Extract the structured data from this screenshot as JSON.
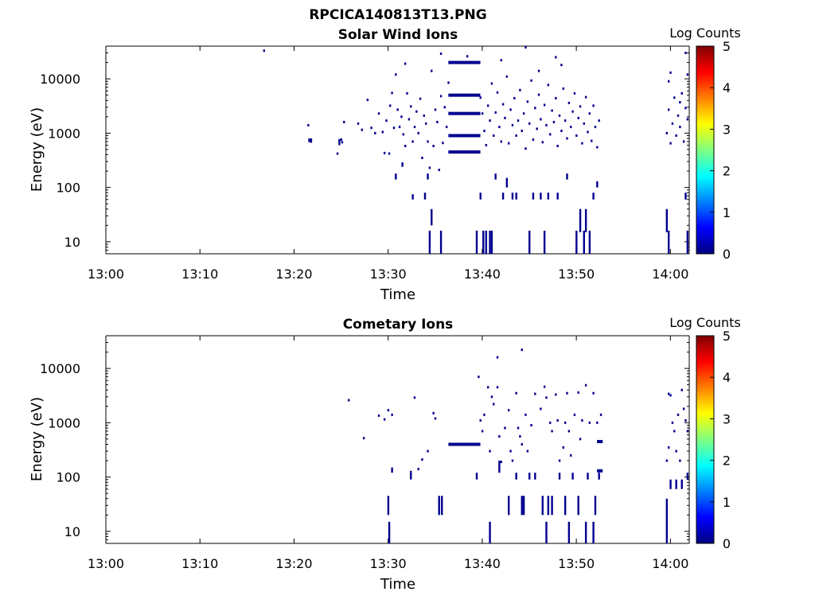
{
  "figure": {
    "title": "RPCICA140813T13.PNG"
  },
  "chart_data": [
    {
      "type": "heatmap",
      "title": "Solar Wind Ions",
      "xlabel": "Time",
      "ylabel": "Energy (eV)",
      "x_ticks": [
        "13:00",
        "13:10",
        "13:20",
        "13:30",
        "13:40",
        "13:50",
        "14:00"
      ],
      "x_range_minutes": [
        0,
        62
      ],
      "y_ticks": [
        "10",
        "100",
        "1000",
        "10000"
      ],
      "y_scale": "log",
      "y_range": [
        6,
        40000
      ],
      "colorbar": {
        "label": "Log Counts",
        "ticks": [
          "0",
          "1",
          "2",
          "3",
          "4",
          "5"
        ],
        "range": [
          0,
          5
        ],
        "colormap": "jet"
      },
      "mark_color": "#00008f",
      "points": [
        [
          21.5,
          1400
        ],
        [
          21.8,
          700
        ],
        [
          21.8,
          760
        ],
        [
          24.6,
          420
        ],
        [
          25.0,
          760
        ],
        [
          25.1,
          680
        ],
        [
          25.3,
          1600
        ],
        [
          26.8,
          1500
        ],
        [
          27.2,
          1150
        ],
        [
          27.8,
          4100
        ],
        [
          28.2,
          1250
        ],
        [
          28.6,
          1000
        ],
        [
          29.0,
          2300
        ],
        [
          29.4,
          1050
        ],
        [
          29.6,
          430
        ],
        [
          29.8,
          1700
        ],
        [
          30.1,
          420
        ],
        [
          30.2,
          3200
        ],
        [
          30.4,
          5500
        ],
        [
          30.6,
          1250
        ],
        [
          30.8,
          12000
        ],
        [
          31.0,
          2700
        ],
        [
          31.2,
          1300
        ],
        [
          31.4,
          2000
        ],
        [
          31.6,
          950
        ],
        [
          31.8,
          580
        ],
        [
          32.0,
          5400
        ],
        [
          32.2,
          1800
        ],
        [
          32.4,
          3100
        ],
        [
          32.6,
          700
        ],
        [
          32.8,
          1300
        ],
        [
          33.0,
          2500
        ],
        [
          33.2,
          1000
        ],
        [
          33.4,
          4300
        ],
        [
          33.6,
          350
        ],
        [
          33.8,
          2100
        ],
        [
          34.0,
          1500
        ],
        [
          34.2,
          700
        ],
        [
          34.4,
          230
        ],
        [
          34.6,
          14000
        ],
        [
          34.8,
          580
        ],
        [
          35.0,
          2700
        ],
        [
          35.2,
          1600
        ],
        [
          35.4,
          210
        ],
        [
          35.6,
          4800
        ],
        [
          35.8,
          660
        ],
        [
          36.0,
          3000
        ],
        [
          36.2,
          1300
        ],
        [
          36.4,
          8500
        ],
        [
          16.8,
          33000
        ],
        [
          31.8,
          19000
        ],
        [
          35.6,
          29000
        ],
        [
          38.4,
          26000
        ],
        [
          39.8,
          4500
        ],
        [
          40.0,
          2300
        ],
        [
          40.2,
          1100
        ],
        [
          40.4,
          600
        ],
        [
          40.6,
          3200
        ],
        [
          40.8,
          1700
        ],
        [
          41.0,
          8200
        ],
        [
          41.2,
          900
        ],
        [
          41.4,
          2400
        ],
        [
          41.6,
          5600
        ],
        [
          41.8,
          1300
        ],
        [
          42.0,
          700
        ],
        [
          42.2,
          3400
        ],
        [
          42.4,
          1900
        ],
        [
          42.6,
          11000
        ],
        [
          42.8,
          650
        ],
        [
          43.0,
          2700
        ],
        [
          43.2,
          1400
        ],
        [
          43.4,
          4400
        ],
        [
          43.6,
          900
        ],
        [
          43.8,
          1700
        ],
        [
          44.0,
          6200
        ],
        [
          44.2,
          1100
        ],
        [
          44.4,
          2300
        ],
        [
          44.6,
          520
        ],
        [
          44.8,
          3800
        ],
        [
          45.0,
          1500
        ],
        [
          45.2,
          9300
        ],
        [
          45.4,
          760
        ],
        [
          45.6,
          2900
        ],
        [
          45.8,
          1200
        ],
        [
          46.0,
          5100
        ],
        [
          46.2,
          1800
        ],
        [
          46.4,
          680
        ],
        [
          46.6,
          3300
        ],
        [
          46.8,
          1400
        ],
        [
          47.0,
          7700
        ],
        [
          47.2,
          950
        ],
        [
          47.4,
          2600
        ],
        [
          47.6,
          1600
        ],
        [
          47.8,
          4400
        ],
        [
          48.0,
          580
        ],
        [
          48.2,
          2100
        ],
        [
          48.4,
          1100
        ],
        [
          48.6,
          6600
        ],
        [
          48.8,
          1700
        ],
        [
          49.0,
          800
        ],
        [
          49.2,
          3600
        ],
        [
          49.4,
          1300
        ],
        [
          49.6,
          2500
        ],
        [
          49.8,
          5400
        ],
        [
          50.0,
          900
        ],
        [
          50.2,
          1900
        ],
        [
          50.4,
          3100
        ],
        [
          50.6,
          650
        ],
        [
          50.8,
          1500
        ],
        [
          51.0,
          4600
        ],
        [
          51.2,
          1050
        ],
        [
          51.4,
          2300
        ],
        [
          51.6,
          720
        ],
        [
          51.8,
          3200
        ],
        [
          52.0,
          1300
        ],
        [
          52.2,
          550
        ],
        [
          52.4,
          1700
        ],
        [
          42.0,
          22000
        ],
        [
          44.6,
          38000
        ],
        [
          46.0,
          14000
        ],
        [
          47.8,
          25000
        ],
        [
          48.4,
          18000
        ],
        [
          59.6,
          1000
        ],
        [
          59.8,
          2700
        ],
        [
          60.0,
          650
        ],
        [
          60.2,
          1500
        ],
        [
          60.4,
          4500
        ],
        [
          60.6,
          900
        ],
        [
          60.8,
          2100
        ],
        [
          61.0,
          1300
        ],
        [
          61.2,
          5400
        ],
        [
          61.4,
          700
        ],
        [
          61.6,
          2900
        ],
        [
          61.8,
          1800
        ],
        [
          59.8,
          9000
        ],
        [
          60.0,
          13000
        ],
        [
          61.6,
          30000
        ],
        [
          61.8,
          12000
        ],
        [
          61.0,
          3700
        ]
      ],
      "segments": [
        [
          36.4,
          39.8,
          20000
        ],
        [
          36.4,
          39.8,
          5000
        ],
        [
          36.4,
          39.8,
          2300
        ],
        [
          36.4,
          39.8,
          900
        ],
        [
          36.4,
          39.8,
          450
        ]
      ],
      "columns": [
        [
          21.6,
          680,
          800
        ],
        [
          24.8,
          600,
          780
        ],
        [
          30.8,
          140,
          180
        ],
        [
          31.5,
          240,
          290
        ],
        [
          32.6,
          60,
          75
        ],
        [
          33.9,
          60,
          80
        ],
        [
          34.2,
          140,
          180
        ],
        [
          34.4,
          6,
          16
        ],
        [
          34.6,
          20,
          40
        ],
        [
          35.6,
          6,
          16
        ],
        [
          39.4,
          6,
          16
        ],
        [
          39.8,
          60,
          80
        ],
        [
          40.1,
          6,
          16
        ],
        [
          40.4,
          6,
          16
        ],
        [
          40.8,
          6,
          16
        ],
        [
          41.0,
          6,
          16
        ],
        [
          41.4,
          140,
          180
        ],
        [
          42.2,
          60,
          80
        ],
        [
          42.6,
          100,
          150
        ],
        [
          43.2,
          60,
          80
        ],
        [
          43.6,
          60,
          80
        ],
        [
          45.0,
          6,
          16
        ],
        [
          45.4,
          60,
          80
        ],
        [
          46.2,
          60,
          80
        ],
        [
          46.6,
          6,
          16
        ],
        [
          47.0,
          60,
          80
        ],
        [
          48.0,
          60,
          80
        ],
        [
          49.0,
          140,
          180
        ],
        [
          50.0,
          6,
          16
        ],
        [
          50.4,
          15,
          40
        ],
        [
          50.8,
          6,
          16
        ],
        [
          51.0,
          15,
          40
        ],
        [
          51.4,
          6,
          16
        ],
        [
          51.8,
          60,
          80
        ],
        [
          52.2,
          100,
          130
        ],
        [
          59.6,
          15,
          40
        ],
        [
          59.8,
          6,
          16
        ],
        [
          61.6,
          60,
          80
        ],
        [
          61.8,
          6,
          16
        ]
      ]
    },
    {
      "type": "heatmap",
      "title": "Cometary Ions",
      "xlabel": "Time",
      "ylabel": "Energy (eV)",
      "x_ticks": [
        "13:00",
        "13:10",
        "13:20",
        "13:30",
        "13:40",
        "13:50",
        "14:00"
      ],
      "x_range_minutes": [
        0,
        62
      ],
      "y_ticks": [
        "10",
        "100",
        "1000",
        "10000"
      ],
      "y_scale": "log",
      "y_range": [
        6,
        40000
      ],
      "colorbar": {
        "label": "Log Counts",
        "ticks": [
          "0",
          "1",
          "2",
          "3",
          "4",
          "5"
        ],
        "range": [
          0,
          5
        ],
        "colormap": "jet"
      },
      "mark_color": "#00008f",
      "points": [
        [
          25.8,
          2600
        ],
        [
          27.4,
          520
        ],
        [
          29.0,
          1350
        ],
        [
          29.6,
          1150
        ],
        [
          30.0,
          1700
        ],
        [
          30.4,
          1400
        ],
        [
          32.8,
          2900
        ],
        [
          33.2,
          140
        ],
        [
          33.6,
          210
        ],
        [
          34.2,
          300
        ],
        [
          34.8,
          1500
        ],
        [
          35.0,
          1200
        ],
        [
          39.6,
          7000
        ],
        [
          39.8,
          1100
        ],
        [
          40.0,
          700
        ],
        [
          40.2,
          1400
        ],
        [
          40.6,
          4500
        ],
        [
          40.8,
          300
        ],
        [
          41.0,
          3000
        ],
        [
          41.2,
          2200
        ],
        [
          41.6,
          4500
        ],
        [
          41.8,
          560
        ],
        [
          42.0,
          190
        ],
        [
          42.4,
          800
        ],
        [
          42.8,
          1700
        ],
        [
          43.0,
          300
        ],
        [
          43.2,
          200
        ],
        [
          43.6,
          3500
        ],
        [
          43.8,
          800
        ],
        [
          44.0,
          560
        ],
        [
          44.2,
          400
        ],
        [
          44.6,
          1400
        ],
        [
          44.8,
          300
        ],
        [
          45.2,
          900
        ],
        [
          45.6,
          3400
        ],
        [
          46.2,
          1800
        ],
        [
          46.6,
          4600
        ],
        [
          46.8,
          2900
        ],
        [
          47.2,
          1000
        ],
        [
          47.4,
          700
        ],
        [
          47.8,
          3300
        ],
        [
          48.0,
          1100
        ],
        [
          48.2,
          200
        ],
        [
          48.6,
          350
        ],
        [
          48.8,
          1000
        ],
        [
          49.0,
          3500
        ],
        [
          49.2,
          700
        ],
        [
          49.4,
          250
        ],
        [
          49.8,
          1400
        ],
        [
          50.2,
          3600
        ],
        [
          50.4,
          500
        ],
        [
          50.6,
          1100
        ],
        [
          51.0,
          4900
        ],
        [
          51.4,
          1000
        ],
        [
          51.8,
          3500
        ],
        [
          52.2,
          1000
        ],
        [
          52.6,
          1400
        ],
        [
          41.6,
          16000
        ],
        [
          44.2,
          22000
        ],
        [
          59.6,
          200
        ],
        [
          59.8,
          350
        ],
        [
          60.0,
          3200
        ],
        [
          60.2,
          1000
        ],
        [
          60.4,
          700
        ],
        [
          60.6,
          300
        ],
        [
          60.8,
          1400
        ],
        [
          61.0,
          200
        ],
        [
          61.2,
          4000
        ],
        [
          61.4,
          1800
        ],
        [
          61.6,
          1100
        ],
        [
          61.8,
          700
        ],
        [
          59.8,
          3400
        ]
      ],
      "segments": [
        [
          36.4,
          39.8,
          400
        ],
        [
          52.2,
          52.8,
          450
        ],
        [
          52.2,
          52.8,
          130
        ]
      ],
      "columns": [
        [
          30.0,
          20,
          45
        ],
        [
          30.1,
          6,
          15
        ],
        [
          30.4,
          120,
          150
        ],
        [
          32.4,
          90,
          130
        ],
        [
          35.4,
          20,
          45
        ],
        [
          35.7,
          20,
          45
        ],
        [
          39.4,
          90,
          120
        ],
        [
          40.8,
          6,
          15
        ],
        [
          41.8,
          120,
          200
        ],
        [
          42.8,
          20,
          45
        ],
        [
          43.6,
          90,
          120
        ],
        [
          44.2,
          20,
          45
        ],
        [
          44.4,
          20,
          45
        ],
        [
          45.0,
          90,
          120
        ],
        [
          45.6,
          90,
          120
        ],
        [
          46.4,
          20,
          45
        ],
        [
          46.8,
          6,
          15
        ],
        [
          47.0,
          20,
          45
        ],
        [
          47.4,
          20,
          45
        ],
        [
          48.2,
          90,
          120
        ],
        [
          48.8,
          20,
          45
        ],
        [
          49.2,
          6,
          15
        ],
        [
          49.6,
          90,
          120
        ],
        [
          50.2,
          20,
          45
        ],
        [
          51.0,
          6,
          15
        ],
        [
          51.2,
          90,
          120
        ],
        [
          51.8,
          6,
          15
        ],
        [
          52.0,
          20,
          45
        ],
        [
          52.4,
          90,
          120
        ],
        [
          59.6,
          6,
          40
        ],
        [
          60.0,
          60,
          90
        ],
        [
          60.6,
          60,
          90
        ],
        [
          61.2,
          60,
          90
        ],
        [
          61.8,
          90,
          120
        ]
      ]
    }
  ]
}
